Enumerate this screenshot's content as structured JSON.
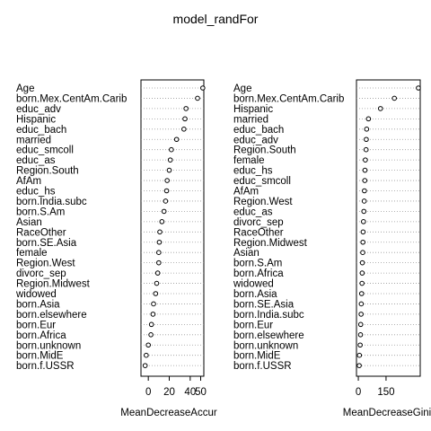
{
  "chart_data": [
    {
      "type": "scatter",
      "panel": "left",
      "title": "model_randFor",
      "xlabel": "MeanDecreaseAccur",
      "xlim": [
        -7,
        53
      ],
      "xticks": [
        0,
        20,
        40
      ],
      "xtick_labels": [
        "0",
        "20",
        "40"
      ],
      "xtick_extra": "50",
      "grid": "dotted horizontal",
      "categories": [
        "Age",
        "born.Mex.CentAm.Carib",
        "educ_adv",
        "Hispanic",
        "educ_bach",
        "married",
        "educ_smcoll",
        "educ_as",
        "Region.South",
        "AfAm",
        "educ_hs",
        "born.India.subc",
        "born.S.Am",
        "Asian",
        "RaceOther",
        "born.SE.Asia",
        "female",
        "Region.West",
        "divorc_sep",
        "Region.Midwest",
        "widowed",
        "born.Asia",
        "born.elsewhere",
        "born.Eur",
        "born.Africa",
        "born.unknown",
        "born.MidE",
        "born.f.USSR"
      ],
      "values": [
        52,
        47,
        36,
        35,
        34,
        27,
        22,
        21,
        20,
        18,
        17.5,
        16.5,
        15,
        13,
        11,
        10.5,
        10,
        10,
        9,
        8,
        7,
        5,
        4.5,
        3,
        2.5,
        0,
        -2,
        -3
      ]
    },
    {
      "type": "scatter",
      "panel": "right",
      "xlabel": "MeanDecreaseGini",
      "xlim": [
        -10,
        335
      ],
      "xticks": [
        0,
        150
      ],
      "xtick_labels": [
        "0",
        "150"
      ],
      "grid": "dotted horizontal",
      "categories": [
        "Age",
        "born.Mex.CentAm.Carib",
        "Hispanic",
        "married",
        "educ_bach",
        "educ_adv",
        "Region.South",
        "female",
        "educ_hs",
        "educ_smcoll",
        "AfAm",
        "Region.West",
        "educ_as",
        "divorc_sep",
        "RaceOther",
        "Region.Midwest",
        "Asian",
        "born.S.Am",
        "born.Africa",
        "widowed",
        "born.Asia",
        "born.SE.Asia",
        "born.India.subc",
        "born.Eur",
        "born.elsewhere",
        "born.unknown",
        "born.MidE",
        "born.f.USSR"
      ],
      "values": [
        325,
        195,
        120,
        55,
        45,
        43,
        42,
        38,
        36,
        35,
        33,
        32,
        30,
        28,
        26,
        25,
        24,
        22,
        21,
        20,
        18,
        16,
        15,
        13,
        12,
        10,
        6,
        5
      ]
    }
  ]
}
